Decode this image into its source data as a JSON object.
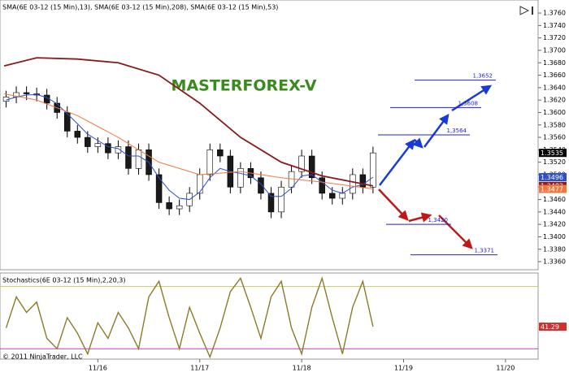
{
  "chart_data": [
    {
      "type": "candlestick",
      "title": "MASTERFOREX-V",
      "legend_text": "SMA(6E 03-12 (15 Min),13), SMA(6E 03-12 (15 Min),208), SMA(6E 03-12 (15 Min),53)",
      "x": [
        -0.9,
        -0.8,
        -0.7,
        -0.6,
        -0.5,
        -0.4,
        -0.3,
        -0.2,
        -0.1,
        0,
        0.1,
        0.2,
        0.3,
        0.4,
        0.5,
        0.6,
        0.7,
        0.8,
        0.9,
        1,
        1.1,
        1.2,
        1.3,
        1.4,
        1.5,
        1.6,
        1.7,
        1.8,
        1.9,
        2,
        2.1,
        2.2,
        2.3,
        2.4,
        2.5,
        2.6,
        2.7
      ],
      "open": [
        1.3618,
        1.3625,
        1.3632,
        1.363,
        1.3628,
        1.3615,
        1.36,
        1.357,
        1.356,
        1.3545,
        1.355,
        1.3535,
        1.3545,
        1.351,
        1.354,
        1.35,
        1.3455,
        1.3445,
        1.345,
        1.347,
        1.35,
        1.354,
        1.353,
        1.348,
        1.351,
        1.3495,
        1.347,
        1.344,
        1.348,
        1.3505,
        1.353,
        1.3495,
        1.347,
        1.3462,
        1.347,
        1.35,
        1.348
      ],
      "high": [
        1.3635,
        1.3642,
        1.3642,
        1.364,
        1.3638,
        1.3625,
        1.361,
        1.358,
        1.357,
        1.356,
        1.356,
        1.3555,
        1.3555,
        1.355,
        1.355,
        1.351,
        1.3465,
        1.346,
        1.348,
        1.351,
        1.355,
        1.355,
        1.354,
        1.352,
        1.352,
        1.3505,
        1.348,
        1.349,
        1.3515,
        1.354,
        1.354,
        1.3505,
        1.348,
        1.348,
        1.351,
        1.351,
        1.3545
      ],
      "low": [
        1.3608,
        1.3615,
        1.362,
        1.3618,
        1.3605,
        1.359,
        1.356,
        1.355,
        1.3535,
        1.3535,
        1.3525,
        1.3525,
        1.35,
        1.35,
        1.349,
        1.3445,
        1.3435,
        1.3435,
        1.344,
        1.346,
        1.349,
        1.352,
        1.347,
        1.347,
        1.3485,
        1.346,
        1.343,
        1.343,
        1.347,
        1.3495,
        1.3485,
        1.346,
        1.3452,
        1.3452,
        1.346,
        1.347,
        1.347
      ],
      "close": [
        1.3625,
        1.3632,
        1.363,
        1.3628,
        1.3615,
        1.36,
        1.357,
        1.356,
        1.3545,
        1.355,
        1.3535,
        1.3545,
        1.351,
        1.354,
        1.35,
        1.3455,
        1.3445,
        1.345,
        1.347,
        1.35,
        1.354,
        1.353,
        1.348,
        1.351,
        1.3495,
        1.347,
        1.344,
        1.348,
        1.3505,
        1.353,
        1.3495,
        1.347,
        1.3462,
        1.347,
        1.35,
        1.348,
        1.3535
      ],
      "up_color": "#ffffff",
      "down_color": "#1a1a1a",
      "wick_color": "#000000",
      "close_tag_color": "#000000",
      "series": [
        {
          "color": "#2f4fc8",
          "x": [
            -0.9,
            -0.8,
            -0.7,
            -0.6,
            -0.5,
            -0.4,
            -0.3,
            -0.2,
            -0.1,
            0,
            0.1,
            0.2,
            0.3,
            0.4,
            0.5,
            0.6,
            0.7,
            0.8,
            0.9,
            1,
            1.1,
            1.2,
            1.3,
            1.4,
            1.5,
            1.6,
            1.7,
            1.8,
            1.9,
            2,
            2.1,
            2.2,
            2.3,
            2.4,
            2.5,
            2.6,
            2.7
          ],
          "values": [
            1.362,
            1.3625,
            1.3628,
            1.3629,
            1.3624,
            1.3614,
            1.3598,
            1.3582,
            1.3565,
            1.3555,
            1.3545,
            1.3542,
            1.353,
            1.353,
            1.352,
            1.3495,
            1.3475,
            1.3462,
            1.346,
            1.3472,
            1.3495,
            1.351,
            1.3505,
            1.3502,
            1.3498,
            1.3485,
            1.3465,
            1.3465,
            1.3478,
            1.3498,
            1.35,
            1.3488,
            1.3475,
            1.347,
            1.348,
            1.3484,
            1.3496
          ]
        },
        {
          "color": "#8b1a1a",
          "x": [
            -0.92,
            -0.6,
            -0.2,
            0.2,
            0.6,
            1.0,
            1.4,
            1.8,
            2.2,
            2.7
          ],
          "values": [
            1.3675,
            1.3688,
            1.3686,
            1.368,
            1.366,
            1.3615,
            1.356,
            1.352,
            1.3498,
            1.3482
          ]
        },
        {
          "color": "#f07840",
          "x": [
            -0.92,
            -0.6,
            -0.2,
            0.2,
            0.6,
            1.0,
            1.4,
            1.8,
            2.2,
            2.7
          ],
          "values": [
            1.363,
            1.362,
            1.3595,
            1.356,
            1.352,
            1.35,
            1.3505,
            1.3495,
            1.3488,
            1.3477
          ]
        }
      ],
      "levels": [
        {
          "value": 1.3652,
          "label": "1,3652"
        },
        {
          "value": 1.3608,
          "label": "1,3608"
        },
        {
          "value": 1.3564,
          "label": "1,3564"
        },
        {
          "value": 1.342,
          "label": "1,3420"
        },
        {
          "value": 1.3371,
          "label": "1,3371"
        }
      ],
      "level_color": "#2222cc",
      "xlim": [
        -0.96,
        4.32
      ],
      "ylim": [
        1.3347,
        1.3781
      ],
      "yticks": [
        {
          "value": 1.336,
          "label": "1.3360"
        },
        {
          "value": 1.338,
          "label": "1.3380"
        },
        {
          "value": 1.34,
          "label": "1.3400"
        },
        {
          "value": 1.342,
          "label": "1.3420"
        },
        {
          "value": 1.344,
          "label": "1.3440"
        },
        {
          "value": 1.346,
          "label": "1.3460"
        },
        {
          "value": 1.348,
          "label": "1.3480"
        },
        {
          "value": 1.35,
          "label": "1.3500"
        },
        {
          "value": 1.352,
          "label": "1.3520"
        },
        {
          "value": 1.354,
          "label": "1.3540"
        },
        {
          "value": 1.356,
          "label": "1.3560"
        },
        {
          "value": 1.358,
          "label": "1.3580"
        },
        {
          "value": 1.36,
          "label": "1.3600"
        },
        {
          "value": 1.362,
          "label": "1.3620"
        },
        {
          "value": 1.364,
          "label": "1.3640"
        },
        {
          "value": 1.366,
          "label": "1.3660"
        },
        {
          "value": 1.368,
          "label": "1.3680"
        },
        {
          "value": 1.37,
          "label": "1.3700"
        },
        {
          "value": 1.372,
          "label": "1.3720"
        },
        {
          "value": 1.374,
          "label": "1.3740"
        },
        {
          "value": 1.376,
          "label": "1.3760"
        }
      ]
    },
    {
      "type": "line",
      "label": "Stochastics(6E 03-12 (15 Min),2,20,3)",
      "copyright": "© 2011 NinjaTrader, LLC",
      "color": "#8b7a2a",
      "tag_color": "#d03030",
      "x": [
        -0.9,
        -0.8,
        -0.7,
        -0.6,
        -0.5,
        -0.4,
        -0.3,
        -0.2,
        -0.1,
        0,
        0.1,
        0.2,
        0.3,
        0.4,
        0.5,
        0.6,
        0.7,
        0.8,
        0.9,
        1,
        1.1,
        1.2,
        1.3,
        1.4,
        1.5,
        1.6,
        1.7,
        1.8,
        1.9,
        2,
        2.1,
        2.2,
        2.3,
        2.4,
        2.5,
        2.6,
        2.7
      ],
      "values": [
        40,
        70,
        55,
        65,
        30,
        20,
        50,
        35,
        15,
        45,
        30,
        55,
        40,
        20,
        70,
        85,
        50,
        20,
        60,
        35,
        12,
        40,
        75,
        88,
        60,
        30,
        70,
        85,
        40,
        15,
        60,
        88,
        50,
        15,
        60,
        85,
        41.29
      ],
      "levels": [
        {
          "value": 80,
          "color": "#c8c860"
        },
        {
          "value": 20,
          "color": "#c040c0"
        }
      ],
      "xlim": [
        -0.96,
        4.32
      ],
      "ylim": [
        10,
        93
      ],
      "xticks": [
        {
          "value": 0,
          "label": "11/16"
        },
        {
          "value": 1,
          "label": "11/17"
        },
        {
          "value": 2,
          "label": "11/18"
        },
        {
          "value": 3,
          "label": "11/19"
        },
        {
          "value": 4,
          "label": "11/20"
        }
      ]
    }
  ]
}
